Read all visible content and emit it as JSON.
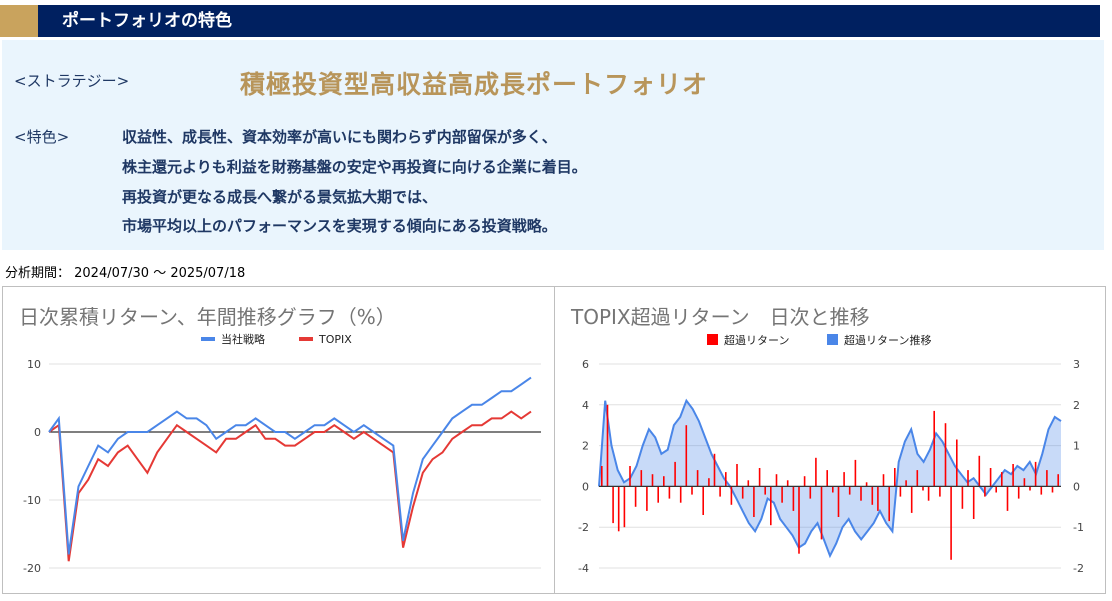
{
  "header": {
    "title": "ポートフォリオの特色",
    "colors": {
      "bar": "#002060",
      "accent": "#c9a35d"
    }
  },
  "strategy": {
    "label": "<ストラテジー>",
    "name": "積極投資型高収益高成長ポートフォリオ"
  },
  "features": {
    "label": "<特色>",
    "lines": [
      "収益性、成長性、資本効率が高いにも関わらず内部留保が多く、",
      "株主還元よりも利益を財務基盤の安定や再投資に向ける企業に着目。",
      "再投資が更なる成長へ繋がる景気拡大期では、",
      "市場平均以上のパフォーマンスを実現する傾向にある投資戦略。"
    ]
  },
  "period": "分析期間： 2024/07/30 〜 2025/07/18",
  "chart_data": [
    {
      "type": "line",
      "title": "日次累積リターン、年間推移グラフ（%）",
      "ylim": [
        -20,
        10
      ],
      "yticks": [
        "10",
        "0",
        "-10",
        "-20"
      ],
      "series": [
        {
          "name": "当社戦略",
          "color": "#4a86e8",
          "values": [
            0,
            2,
            -18,
            -8,
            -5,
            -2,
            -3,
            -1,
            0,
            0,
            0,
            1,
            2,
            3,
            2,
            2,
            1,
            -1,
            0,
            1,
            1,
            2,
            1,
            0,
            0,
            -1,
            0,
            1,
            1,
            2,
            1,
            0,
            1,
            0,
            -1,
            -2,
            -16,
            -9,
            -4,
            -2,
            0,
            2,
            3,
            4,
            4,
            5,
            6,
            6,
            7,
            8
          ]
        },
        {
          "name": "TOPIX",
          "color": "#e53935",
          "values": [
            0,
            1,
            -19,
            -9,
            -7,
            -4,
            -5,
            -3,
            -2,
            -4,
            -6,
            -3,
            -1,
            1,
            0,
            -1,
            -2,
            -3,
            -1,
            -1,
            0,
            1,
            -1,
            -1,
            -2,
            -2,
            -1,
            0,
            0,
            1,
            0,
            -1,
            0,
            -1,
            -2,
            -3,
            -17,
            -11,
            -6,
            -4,
            -3,
            -1,
            0,
            1,
            1,
            2,
            2,
            3,
            2,
            3
          ]
        }
      ]
    },
    {
      "type": "bar",
      "title": "TOPIX超過リターン　日次と推移",
      "ylim_left": [
        -4,
        6
      ],
      "ylim_right": [
        -2,
        3
      ],
      "yticks_left": [
        "6",
        "4",
        "2",
        "0",
        "-2",
        "-4"
      ],
      "yticks_right": [
        "3",
        "2",
        "1",
        "0",
        "-1",
        "-2"
      ],
      "series": [
        {
          "name": "超過リターン",
          "color": "#ff0000",
          "axis": "left",
          "values": [
            1,
            4,
            -1.8,
            -2.2,
            -2,
            1,
            -1,
            0.8,
            -1.2,
            0.6,
            -0.8,
            0.5,
            -0.6,
            1.2,
            -0.8,
            3,
            -0.4,
            0.8,
            -1.4,
            0.4,
            1.6,
            -0.5,
            0.7,
            -0.9,
            1.1,
            -0.6,
            0.3,
            -1.5,
            0.9,
            -0.4,
            -1.9,
            0.6,
            -0.8,
            0.3,
            -1.2,
            -3.3,
            0.5,
            -0.6,
            1.4,
            -2.6,
            0.8,
            -0.3,
            -1.5,
            0.7,
            -0.4,
            1.3,
            -0.7,
            0.2,
            -0.9,
            -1.2,
            0.6,
            -1.7,
            0.9,
            -0.5,
            0.3,
            -1.3,
            0.8,
            -0.2,
            -0.7,
            3.7,
            -0.5,
            3.1,
            -3.6,
            2.3,
            -1.1,
            0.8,
            -1.6,
            1.5,
            -0.5,
            0.9,
            -0.3,
            0.7,
            -1.2,
            1.1,
            -0.6,
            0.4,
            -0.2,
            1.2,
            -0.4,
            0.8,
            -0.3,
            0.6
          ]
        },
        {
          "name": "超過リターン推移",
          "color": "#4a86e8",
          "axis": "right",
          "values": [
            0,
            2.1,
            1,
            0.4,
            0.1,
            0.2,
            0.5,
            1,
            1.4,
            1.2,
            0.8,
            0.9,
            1.5,
            1.7,
            2.1,
            1.9,
            1.6,
            1.2,
            0.8,
            0.5,
            0.2,
            0,
            -0.3,
            -0.6,
            -0.9,
            -1.1,
            -0.8,
            -0.3,
            -0.4,
            -0.8,
            -1,
            -1.2,
            -1.5,
            -1.4,
            -1.1,
            -0.9,
            -1.3,
            -1.7,
            -1.4,
            -1,
            -0.8,
            -1.1,
            -1.3,
            -1.1,
            -0.9,
            -0.6,
            -0.9,
            -1.1,
            0.6,
            1.1,
            1.4,
            0.8,
            0.6,
            0.9,
            1.3,
            1.1,
            0.8,
            0.5,
            0.3,
            0.1,
            0.2,
            0,
            -0.2,
            0,
            0.2,
            0.4,
            0.3,
            0.5,
            0.4,
            0.6,
            0.3,
            0.8,
            1.4,
            1.7,
            1.6
          ]
        }
      ]
    }
  ]
}
